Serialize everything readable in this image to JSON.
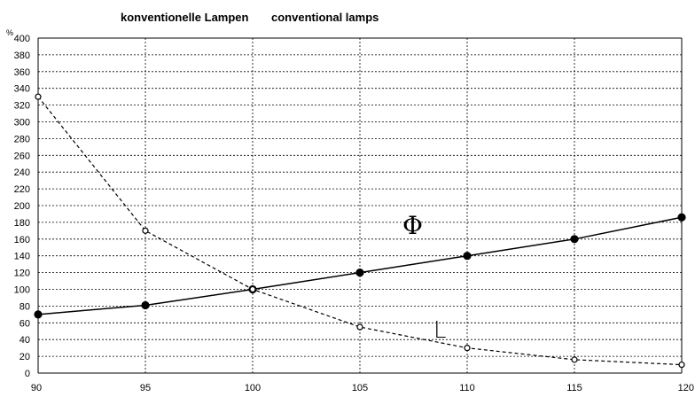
{
  "chart_data": {
    "type": "line",
    "title": "konventionelle Lampen",
    "subtitle": "conventional lamps",
    "ylabel": "%",
    "xlabel": "",
    "xlim": [
      90,
      120
    ],
    "ylim": [
      0,
      400
    ],
    "x_ticks": [
      90,
      95,
      100,
      105,
      110,
      115,
      120
    ],
    "y_ticks": [
      0,
      20,
      40,
      60,
      80,
      100,
      120,
      140,
      160,
      180,
      200,
      220,
      240,
      260,
      280,
      300,
      320,
      340,
      360,
      380,
      400
    ],
    "grid": true,
    "series": [
      {
        "name": "Φ",
        "style": "solid",
        "marker": "filled-circle",
        "x": [
          90,
          95,
          100,
          105,
          110,
          115,
          120
        ],
        "y": [
          70,
          81,
          100,
          120,
          140,
          160,
          186
        ]
      },
      {
        "name": "L",
        "style": "dashed",
        "marker": "open-circle",
        "x": [
          90,
          95,
          100,
          105,
          110,
          115,
          120
        ],
        "y": [
          330,
          170,
          100,
          55,
          30,
          16,
          10
        ]
      }
    ]
  }
}
